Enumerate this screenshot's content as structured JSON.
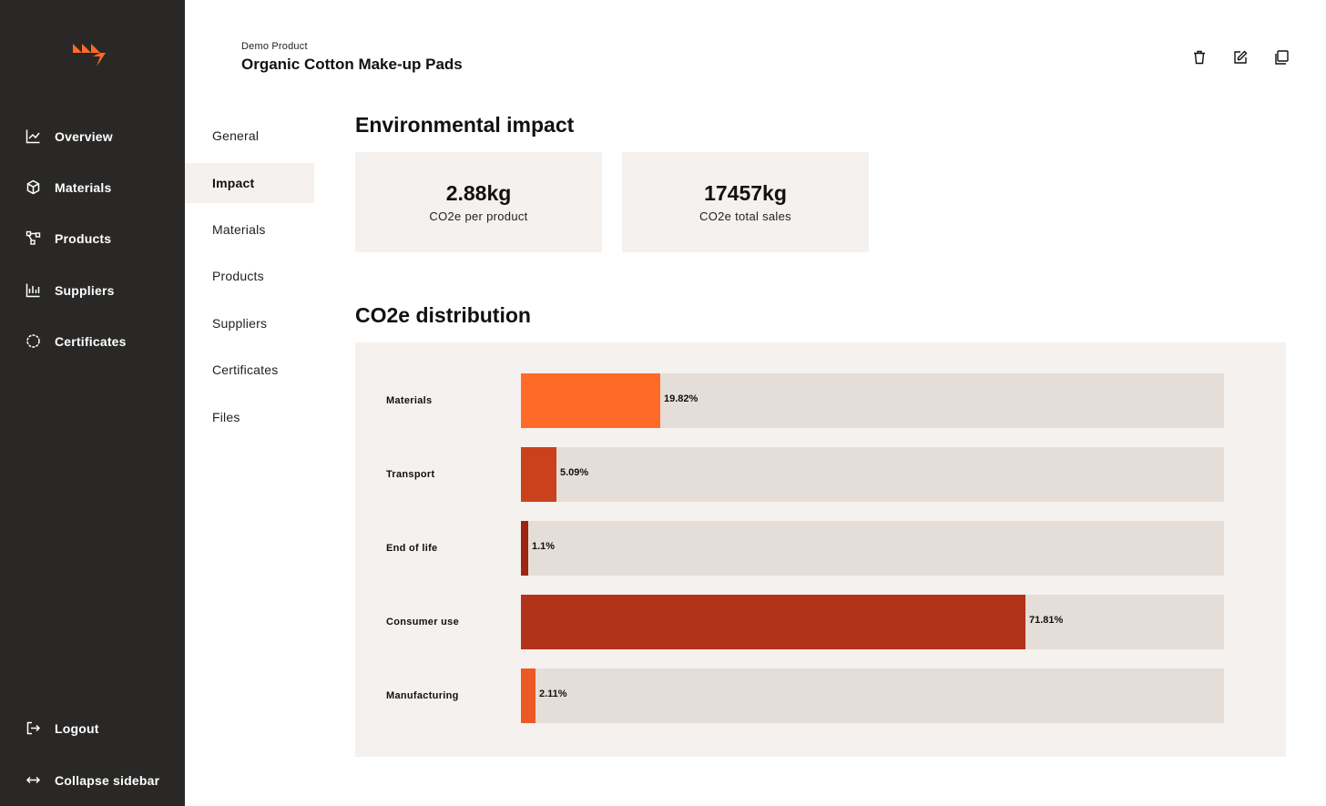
{
  "sidebar": {
    "items": [
      {
        "label": "Overview",
        "icon": "line-chart-icon"
      },
      {
        "label": "Materials",
        "icon": "cube-icon"
      },
      {
        "label": "Products",
        "icon": "nodes-icon"
      },
      {
        "label": "Suppliers",
        "icon": "bar-chart-icon"
      },
      {
        "label": "Certificates",
        "icon": "badge-icon"
      }
    ],
    "logout": "Logout",
    "collapse": "Collapse sidebar"
  },
  "header": {
    "breadcrumb": "Demo Product",
    "title": "Organic Cotton Make-up Pads",
    "actions": [
      "trash-icon",
      "edit-icon",
      "duplicate-icon"
    ]
  },
  "subnav": {
    "items": [
      "General",
      "Impact",
      "Materials",
      "Products",
      "Suppliers",
      "Certificates",
      "Files"
    ],
    "active": "Impact"
  },
  "impact": {
    "heading": "Environmental impact",
    "cards": [
      {
        "value": "2.88kg",
        "label": "CO2e per product"
      },
      {
        "value": "17457kg",
        "label": "CO2e total sales"
      }
    ]
  },
  "distribution": {
    "heading": "CO2e distribution"
  },
  "chart_data": {
    "type": "bar",
    "orientation": "horizontal",
    "categories": [
      "Materials",
      "Transport",
      "End of life",
      "Consumer use",
      "Manufacturing"
    ],
    "values": [
      19.82,
      5.09,
      1.1,
      71.81,
      2.11
    ],
    "value_labels": [
      "19.82%",
      "5.09%",
      "1.1%",
      "71.81%",
      "2.11%"
    ],
    "colors": [
      "#ff6a28",
      "#c9421b",
      "#9e2413",
      "#b0331a",
      "#eb5a24"
    ],
    "track_color": "#e5ddd7",
    "xlim": [
      0,
      100
    ]
  },
  "colors": {
    "sidebar_bg": "#292827",
    "panel_bg": "#f4f1ee",
    "brand": "#ff6a28"
  }
}
